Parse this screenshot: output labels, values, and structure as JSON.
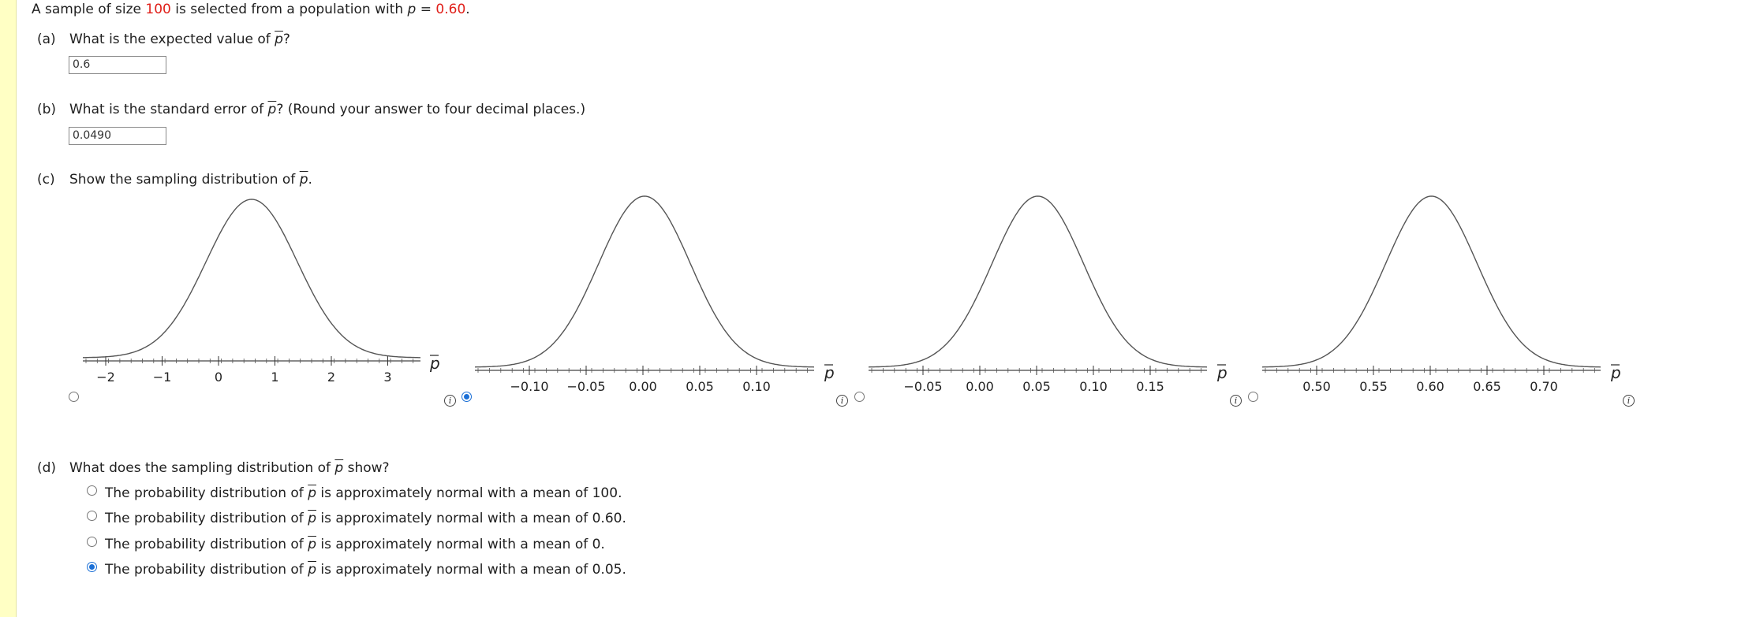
{
  "intro": {
    "prefix": "A sample of size ",
    "n": "100",
    "mid": " is selected from a population with ",
    "p_symbol": "p",
    "eq": " = ",
    "p_value": "0.60",
    "end": "."
  },
  "part_a": {
    "label": "(a)",
    "question_pre": "What is the expected value of ",
    "symbol": "p",
    "question_post": "?",
    "answer": "0.6"
  },
  "part_b": {
    "label": "(b)",
    "question_pre": "What is the standard error of ",
    "symbol": "p",
    "question_post": "? (Round your answer to four decimal places.)",
    "answer": "0.0490"
  },
  "part_c": {
    "label": "(c)",
    "question_pre": "Show the sampling distribution of ",
    "symbol": "p",
    "question_post": ".",
    "axis_symbol": "p",
    "info_icon": "i",
    "options": [
      {
        "ticks": [
          "−2",
          "−1",
          "0",
          "1",
          "2",
          "3"
        ],
        "selected": false
      },
      {
        "ticks": [
          "−0.10",
          "−0.05",
          "0.00",
          "0.05",
          "0.10"
        ],
        "selected": true
      },
      {
        "ticks": [
          "−0.05",
          "0.00",
          "0.05",
          "0.10",
          "0.15"
        ],
        "selected": false
      },
      {
        "ticks": [
          "0.50",
          "0.55",
          "0.60",
          "0.65",
          "0.70"
        ],
        "selected": false
      }
    ]
  },
  "part_d": {
    "label": "(d)",
    "question_pre": "What does the sampling distribution of ",
    "symbol": "p",
    "question_post": " show?",
    "choices": [
      {
        "pre": "The probability distribution of ",
        "symbol": "p",
        "post": " is approximately normal with a mean of 100.",
        "selected": false
      },
      {
        "pre": "The probability distribution of ",
        "symbol": "p",
        "post": " is approximately normal with a mean of 0.60.",
        "selected": false
      },
      {
        "pre": "The probability distribution of ",
        "symbol": "p",
        "post": " is approximately normal with a mean of 0.",
        "selected": false
      },
      {
        "pre": "The probability distribution of ",
        "symbol": "p",
        "post": " is approximately normal with a mean of 0.05.",
        "selected": true
      }
    ]
  },
  "colors": {
    "accent": "#e0201a",
    "radio_selected": "#1a6fd6",
    "left_bar": "#ffffc4"
  }
}
